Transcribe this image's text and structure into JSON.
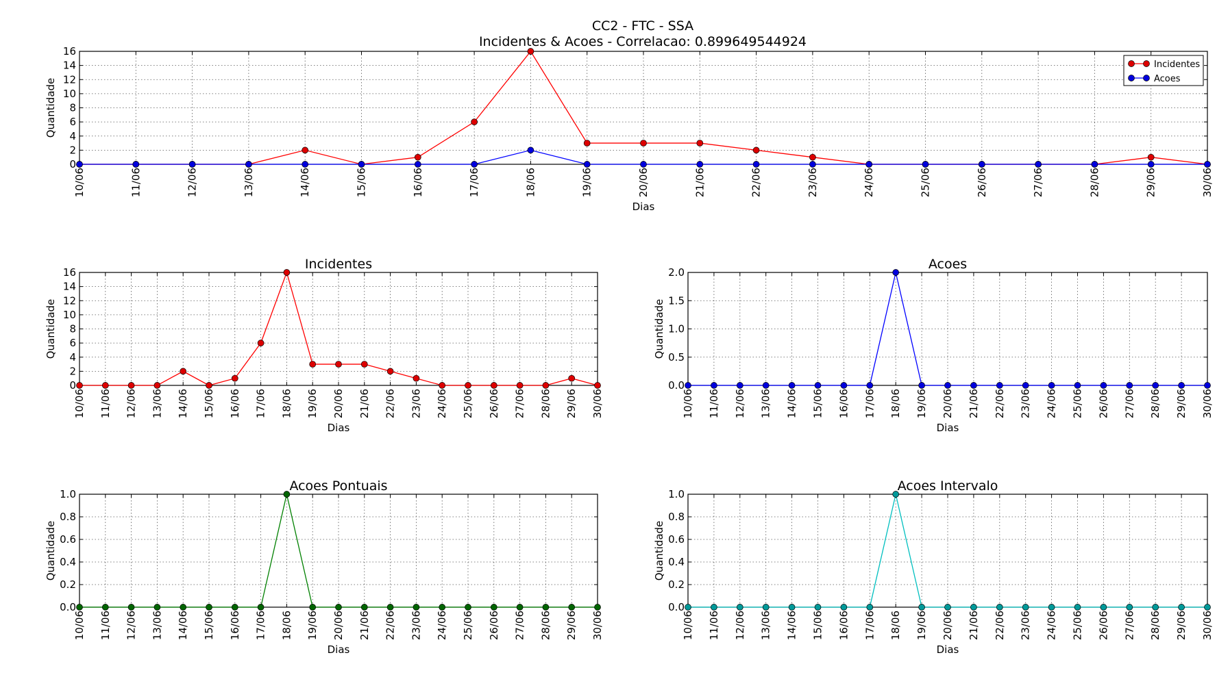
{
  "figure": {
    "title": "CC2 - FTC - SSA",
    "subtitle": "Incidentes & Acoes - Correlacao: 0.899649544924"
  },
  "colors": {
    "incidentes": "#ff0000",
    "acoes": "#0000ff",
    "acoes_pontuais": "#008000",
    "acoes_intervalo": "#00bfbf",
    "grid": "#555555"
  },
  "chart_data": [
    {
      "type": "line",
      "title": "",
      "xlabel": "Dias",
      "ylabel": "Quantidade",
      "categories": [
        "10/06",
        "11/06",
        "12/06",
        "13/06",
        "14/06",
        "15/06",
        "16/06",
        "17/06",
        "18/06",
        "19/06",
        "20/06",
        "21/06",
        "22/06",
        "23/06",
        "24/06",
        "25/06",
        "26/06",
        "27/06",
        "28/06",
        "29/06",
        "30/06"
      ],
      "ylim": [
        0,
        16
      ],
      "yticks": [
        "0",
        "2",
        "4",
        "6",
        "8",
        "10",
        "12",
        "14",
        "16"
      ],
      "grid": true,
      "legend": "top-right",
      "series": [
        {
          "name": "Incidentes",
          "color": "#ff0000",
          "marker_fill": "#dd0000",
          "values": [
            0,
            0,
            0,
            0,
            2,
            0,
            1,
            6,
            16,
            3,
            3,
            3,
            2,
            1,
            0,
            0,
            0,
            0,
            0,
            1,
            0
          ]
        },
        {
          "name": "Acoes",
          "color": "#0000ff",
          "marker_fill": "#0000dd",
          "values": [
            0,
            0,
            0,
            0,
            0,
            0,
            0,
            0,
            2,
            0,
            0,
            0,
            0,
            0,
            0,
            0,
            0,
            0,
            0,
            0,
            0
          ]
        }
      ]
    },
    {
      "type": "line",
      "title": "Incidentes",
      "xlabel": "Dias",
      "ylabel": "Quantidade",
      "categories": [
        "10/06",
        "11/06",
        "12/06",
        "13/06",
        "14/06",
        "15/06",
        "16/06",
        "17/06",
        "18/06",
        "19/06",
        "20/06",
        "21/06",
        "22/06",
        "23/06",
        "24/06",
        "25/06",
        "26/06",
        "27/06",
        "28/06",
        "29/06",
        "30/06"
      ],
      "ylim": [
        0,
        16
      ],
      "yticks": [
        "0",
        "2",
        "4",
        "6",
        "8",
        "10",
        "12",
        "14",
        "16"
      ],
      "grid": true,
      "series": [
        {
          "color": "#ff0000",
          "marker_fill": "#dd0000",
          "values": [
            0,
            0,
            0,
            0,
            2,
            0,
            1,
            6,
            16,
            3,
            3,
            3,
            2,
            1,
            0,
            0,
            0,
            0,
            0,
            1,
            0
          ]
        }
      ]
    },
    {
      "type": "line",
      "title": "Acoes",
      "xlabel": "Dias",
      "ylabel": "Quantidade",
      "categories": [
        "10/06",
        "11/06",
        "12/06",
        "13/06",
        "14/06",
        "15/06",
        "16/06",
        "17/06",
        "18/06",
        "19/06",
        "20/06",
        "21/06",
        "22/06",
        "23/06",
        "24/06",
        "25/06",
        "26/06",
        "27/06",
        "28/06",
        "29/06",
        "30/06"
      ],
      "ylim": [
        0,
        2
      ],
      "yticks": [
        "0.0",
        "0.5",
        "1.0",
        "1.5",
        "2.0"
      ],
      "grid": true,
      "series": [
        {
          "color": "#0000ff",
          "marker_fill": "#0000dd",
          "values": [
            0,
            0,
            0,
            0,
            0,
            0,
            0,
            0,
            2,
            0,
            0,
            0,
            0,
            0,
            0,
            0,
            0,
            0,
            0,
            0,
            0
          ]
        }
      ]
    },
    {
      "type": "line",
      "title": "Acoes Pontuais",
      "xlabel": "Dias",
      "ylabel": "Quantidade",
      "categories": [
        "10/06",
        "11/06",
        "12/06",
        "13/06",
        "14/06",
        "15/06",
        "16/06",
        "17/06",
        "18/06",
        "19/06",
        "20/06",
        "21/06",
        "22/06",
        "23/06",
        "24/06",
        "25/06",
        "26/06",
        "27/06",
        "28/06",
        "29/06",
        "30/06"
      ],
      "ylim": [
        0,
        1
      ],
      "yticks": [
        "0.0",
        "0.2",
        "0.4",
        "0.6",
        "0.8",
        "1.0"
      ],
      "grid": true,
      "series": [
        {
          "color": "#008000",
          "marker_fill": "#006400",
          "values": [
            0,
            0,
            0,
            0,
            0,
            0,
            0,
            0,
            1,
            0,
            0,
            0,
            0,
            0,
            0,
            0,
            0,
            0,
            0,
            0,
            0
          ]
        }
      ]
    },
    {
      "type": "line",
      "title": "Acoes Intervalo",
      "xlabel": "Dias",
      "ylabel": "Quantidade",
      "categories": [
        "10/06",
        "11/06",
        "12/06",
        "13/06",
        "14/06",
        "15/06",
        "16/06",
        "17/06",
        "18/06",
        "19/06",
        "20/06",
        "21/06",
        "22/06",
        "23/06",
        "24/06",
        "25/06",
        "26/06",
        "27/06",
        "28/06",
        "29/06",
        "30/06"
      ],
      "ylim": [
        0,
        1
      ],
      "yticks": [
        "0.0",
        "0.2",
        "0.4",
        "0.6",
        "0.8",
        "1.0"
      ],
      "grid": true,
      "series": [
        {
          "color": "#00bfbf",
          "marker_fill": "#009999",
          "values": [
            0,
            0,
            0,
            0,
            0,
            0,
            0,
            0,
            1,
            0,
            0,
            0,
            0,
            0,
            0,
            0,
            0,
            0,
            0,
            0,
            0
          ]
        }
      ]
    }
  ]
}
